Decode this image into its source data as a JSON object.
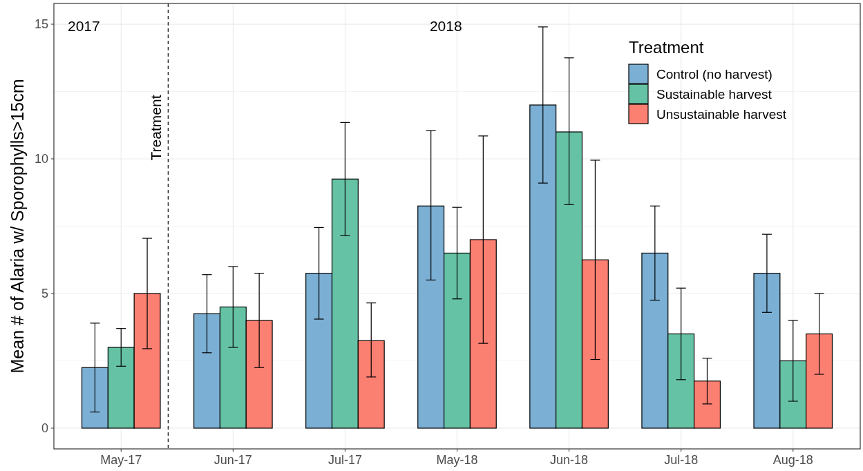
{
  "chart_data": {
    "type": "bar",
    "ylabel": "Mean # of Alaria w/ Sporophylls>15cm",
    "categories": [
      "May-17",
      "Jun-17",
      "Jul-17",
      "May-18",
      "Jun-18",
      "Jul-18",
      "Aug-18"
    ],
    "series": [
      {
        "name": "Control (no harvest)",
        "color": "#7bafd4",
        "values": [
          2.25,
          4.25,
          5.75,
          8.25,
          12.0,
          6.5,
          5.75
        ],
        "errors": [
          [
            0.6,
            3.9
          ],
          [
            2.8,
            5.7
          ],
          [
            4.05,
            7.45
          ],
          [
            5.5,
            11.05
          ],
          [
            9.1,
            14.9
          ],
          [
            4.75,
            8.25
          ],
          [
            4.3,
            7.2
          ]
        ]
      },
      {
        "name": "Sustainable harvest",
        "color": "#66c2a5",
        "values": [
          3.0,
          4.5,
          9.25,
          6.5,
          11.0,
          3.5,
          2.5
        ],
        "errors": [
          [
            2.3,
            3.7
          ],
          [
            3.0,
            6.0
          ],
          [
            7.15,
            11.35
          ],
          [
            4.8,
            8.2
          ],
          [
            8.3,
            13.75
          ],
          [
            1.8,
            5.2
          ],
          [
            1.0,
            4.0
          ]
        ]
      },
      {
        "name": "Unsustainable harvest",
        "color": "#fb8072",
        "values": [
          5.0,
          4.0,
          3.25,
          7.0,
          6.25,
          1.75,
          3.5
        ],
        "errors": [
          [
            2.95,
            7.05
          ],
          [
            2.25,
            5.75
          ],
          [
            1.9,
            4.65
          ],
          [
            3.15,
            10.85
          ],
          [
            2.55,
            9.95
          ],
          [
            0.9,
            2.6
          ],
          [
            2.0,
            5.0
          ]
        ]
      }
    ],
    "legend_title": "Treatment",
    "legend": "top right",
    "ylim": [
      -0.77,
      15.77
    ],
    "yticks": [
      0,
      5,
      10,
      15
    ],
    "grid": true,
    "annotations": [
      "2017",
      "2018",
      "Treatment"
    ]
  }
}
